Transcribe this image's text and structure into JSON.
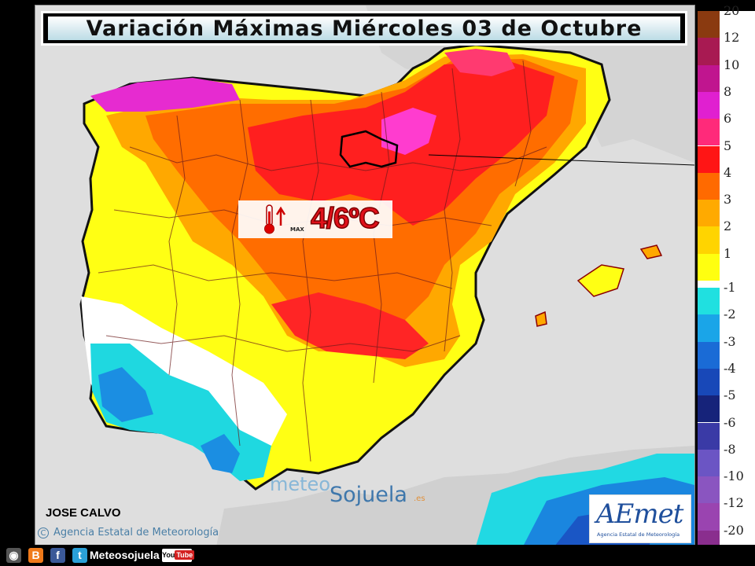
{
  "title": "Variación Máximas Miércoles 03 de Octubre",
  "highlight": {
    "value": "4/6ºC",
    "max_label": "MAX"
  },
  "author": "JOSE CALVO",
  "copyright": "Agencia Estatal de Meteorología",
  "watermark": {
    "part1": "meteo",
    "part2": "Sojuela",
    "part3": ".es"
  },
  "aemet": {
    "name": "AEmet",
    "subtitle": "Agencia Estatal de Meteorología"
  },
  "legend": {
    "warm": [
      {
        "label": "20",
        "color": "#8a3a10"
      },
      {
        "label": "12",
        "color": "#a81a52"
      },
      {
        "label": "10",
        "color": "#c0158f"
      },
      {
        "label": "8",
        "color": "#e020d0"
      },
      {
        "label": "6",
        "color": "#ff2a7a"
      },
      {
        "label": "5",
        "color": "#ff1515"
      },
      {
        "label": "4",
        "color": "#ff6a00"
      },
      {
        "label": "3",
        "color": "#ffaa00"
      },
      {
        "label": "2",
        "color": "#ffd400"
      },
      {
        "label": "1",
        "color": "#ffff10"
      }
    ],
    "cold": [
      {
        "label": "-1",
        "color": "#20e0e0"
      },
      {
        "label": "-2",
        "color": "#1aa5e8"
      },
      {
        "label": "-3",
        "color": "#1a6bd6"
      },
      {
        "label": "-4",
        "color": "#1848b8"
      },
      {
        "label": "-5",
        "color": "#16237a"
      },
      {
        "label": "-6",
        "color": "#3a3aa6"
      },
      {
        "label": "-8",
        "color": "#6b55c4"
      },
      {
        "label": "-10",
        "color": "#8a55c0"
      },
      {
        "label": "-12",
        "color": "#9a44b0"
      },
      {
        "label": "-20",
        "color": "#8a2e8e"
      }
    ]
  },
  "social": {
    "handle": "Meteosojuela",
    "youtube": "You",
    "tube": "Tube"
  }
}
